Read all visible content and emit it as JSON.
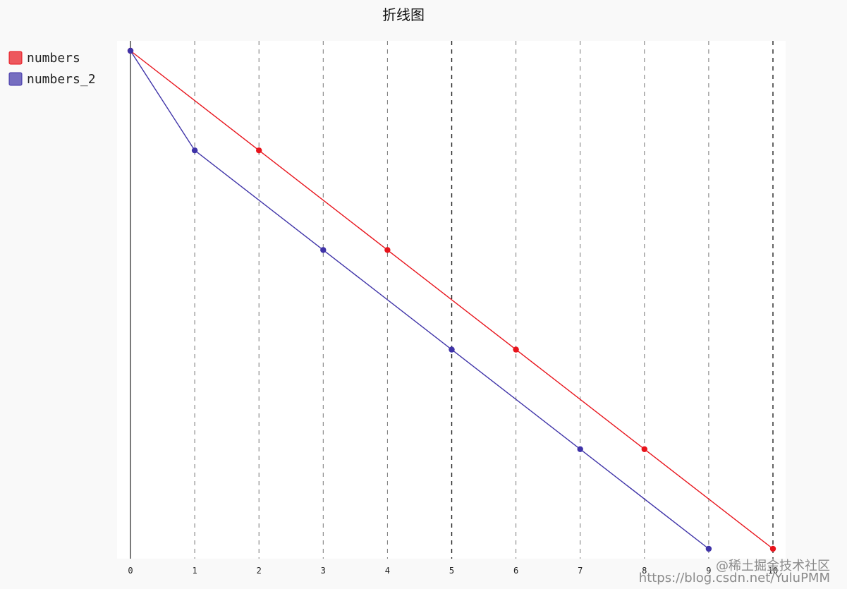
{
  "chart_data": {
    "type": "line",
    "title": "折线图",
    "xlabel": "",
    "ylabel": "",
    "x": [
      0,
      1,
      2,
      3,
      4,
      5,
      6,
      7,
      8,
      9,
      10
    ],
    "xlim": [
      0,
      10
    ],
    "ylim": [
      0,
      10
    ],
    "x_ticks": [
      "0",
      "1",
      "2",
      "3",
      "4",
      "5",
      "6",
      "7",
      "8",
      "9",
      "10"
    ],
    "y_ticks_shown": false,
    "grid": "vertical-dashed",
    "legend_position": "left",
    "series": [
      {
        "name": "numbers",
        "color": "#e8141c",
        "x": [
          0,
          2,
          4,
          6,
          8,
          10
        ],
        "y": [
          10,
          8,
          6,
          4,
          2,
          0
        ]
      },
      {
        "name": "numbers_2",
        "color": "#3f33a8",
        "x": [
          0,
          1,
          3,
          5,
          7,
          9
        ],
        "y": [
          10,
          8,
          6,
          4,
          2,
          0
        ]
      }
    ]
  },
  "watermark": "@稀土掘金技术社区",
  "watermark_overlay": "https://blog.csdn.net/YuluPMM"
}
